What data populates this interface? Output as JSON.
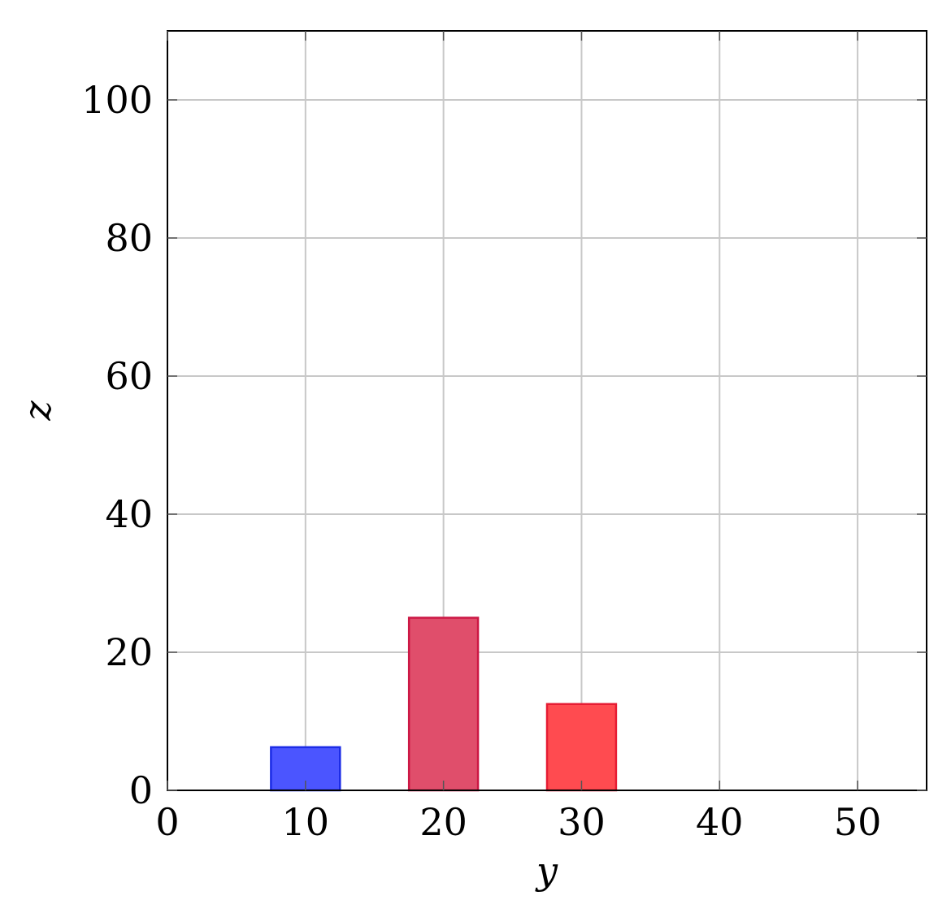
{
  "chart_data": {
    "type": "bar",
    "title": "",
    "xlabel": "y",
    "ylabel": "z",
    "xlim": [
      0,
      55
    ],
    "ylim": [
      0,
      110
    ],
    "xticks": [
      0,
      10,
      20,
      30,
      40,
      50
    ],
    "yticks": [
      0,
      20,
      40,
      60,
      80,
      100
    ],
    "grid": true,
    "bar_width": 5,
    "bars": [
      {
        "x": 10,
        "value": 6.25,
        "fill": "#4b55ff",
        "stroke": "#1c2ce6"
      },
      {
        "x": 20,
        "value": 25,
        "fill": "#e04e6b",
        "stroke": "#cc1744"
      },
      {
        "x": 30,
        "value": 12.5,
        "fill": "#ff4b50",
        "stroke": "#e61c33"
      }
    ]
  }
}
